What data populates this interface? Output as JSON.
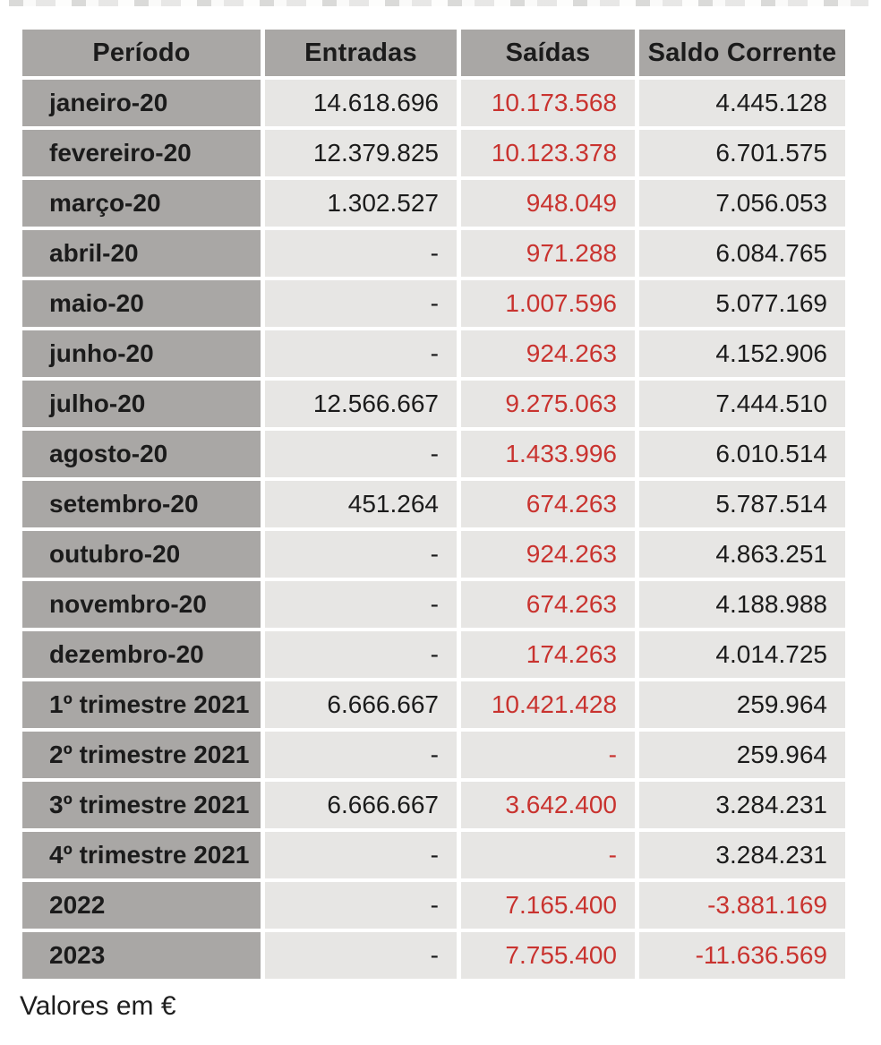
{
  "colors": {
    "header_bg": "#a9a7a5",
    "label_bg": "#a9a7a5",
    "cell_bg": "#e7e6e4",
    "negative_red": "#c9332f",
    "text_black": "#1b1b1b"
  },
  "footer": {
    "note": "Valores em €"
  },
  "table": {
    "columns": [
      "Período",
      "Entradas",
      "Saídas",
      "Saldo Corrente"
    ],
    "rows": [
      {
        "periodo": "janeiro-20",
        "entradas": "14.618.696",
        "saidas": "10.173.568",
        "saldo": "4.445.128"
      },
      {
        "periodo": "fevereiro-20",
        "entradas": "12.379.825",
        "saidas": "10.123.378",
        "saldo": "6.701.575"
      },
      {
        "periodo": "março-20",
        "entradas": "1.302.527",
        "saidas": "948.049",
        "saldo": "7.056.053"
      },
      {
        "periodo": "abril-20",
        "entradas": "-",
        "saidas": "971.288",
        "saldo": "6.084.765"
      },
      {
        "periodo": "maio-20",
        "entradas": "-",
        "saidas": "1.007.596",
        "saldo": "5.077.169"
      },
      {
        "periodo": "junho-20",
        "entradas": "-",
        "saidas": "924.263",
        "saldo": "4.152.906"
      },
      {
        "periodo": "julho-20",
        "entradas": "12.566.667",
        "saidas": "9.275.063",
        "saldo": "7.444.510"
      },
      {
        "periodo": "agosto-20",
        "entradas": "-",
        "saidas": "1.433.996",
        "saldo": "6.010.514"
      },
      {
        "periodo": "setembro-20",
        "entradas": "451.264",
        "saidas": "674.263",
        "saldo": "5.787.514"
      },
      {
        "periodo": "outubro-20",
        "entradas": "-",
        "saidas": "924.263",
        "saldo": "4.863.251"
      },
      {
        "periodo": "novembro-20",
        "entradas": "-",
        "saidas": "674.263",
        "saldo": "4.188.988"
      },
      {
        "periodo": "dezembro-20",
        "entradas": "-",
        "saidas": "174.263",
        "saldo": "4.014.725"
      },
      {
        "periodo": "1º trimestre 2021",
        "entradas": "6.666.667",
        "saidas": "10.421.428",
        "saldo": "259.964"
      },
      {
        "periodo": "2º trimestre 2021",
        "entradas": "-",
        "saidas": "-",
        "saldo": "259.964"
      },
      {
        "periodo": "3º trimestre 2021",
        "entradas": "6.666.667",
        "saidas": "3.642.400",
        "saldo": "3.284.231"
      },
      {
        "periodo": "4º trimestre 2021",
        "entradas": "-",
        "saidas": "-",
        "saldo": "3.284.231"
      },
      {
        "periodo": "2022",
        "entradas": "-",
        "saidas": "7.165.400",
        "saldo": "-3.881.169"
      },
      {
        "periodo": "2023",
        "entradas": "-",
        "saidas": "7.755.400",
        "saldo": "-11.636.569"
      }
    ]
  },
  "chart_data": {
    "type": "table",
    "title": "",
    "unit_note": "Valores em €",
    "columns": [
      "Período",
      "Entradas",
      "Saídas",
      "Saldo Corrente"
    ],
    "rows": [
      [
        "janeiro-20",
        14618696,
        10173568,
        4445128
      ],
      [
        "fevereiro-20",
        12379825,
        10123378,
        6701575
      ],
      [
        "março-20",
        1302527,
        948049,
        7056053
      ],
      [
        "abril-20",
        null,
        971288,
        6084765
      ],
      [
        "maio-20",
        null,
        1007596,
        5077169
      ],
      [
        "junho-20",
        null,
        924263,
        4152906
      ],
      [
        "julho-20",
        12566667,
        9275063,
        7444510
      ],
      [
        "agosto-20",
        null,
        1433996,
        6010514
      ],
      [
        "setembro-20",
        451264,
        674263,
        5787514
      ],
      [
        "outubro-20",
        null,
        924263,
        4863251
      ],
      [
        "novembro-20",
        null,
        674263,
        4188988
      ],
      [
        "dezembro-20",
        null,
        174263,
        4014725
      ],
      [
        "1º trimestre 2021",
        6666667,
        10421428,
        259964
      ],
      [
        "2º trimestre 2021",
        null,
        null,
        259964
      ],
      [
        "3º trimestre 2021",
        6666667,
        3642400,
        3284231
      ],
      [
        "4º trimestre 2021",
        null,
        null,
        3284231
      ],
      [
        "2022",
        null,
        7165400,
        -3881169
      ],
      [
        "2023",
        null,
        7755400,
        -11636569
      ]
    ]
  }
}
